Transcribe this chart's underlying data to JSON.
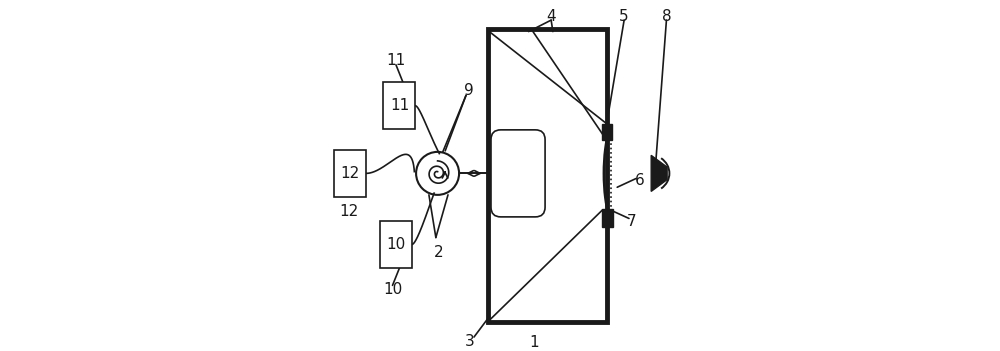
{
  "bg_color": "#ffffff",
  "line_color": "#1a1a1a",
  "fig_width": 10.0,
  "fig_height": 3.51,
  "dpi": 100
}
